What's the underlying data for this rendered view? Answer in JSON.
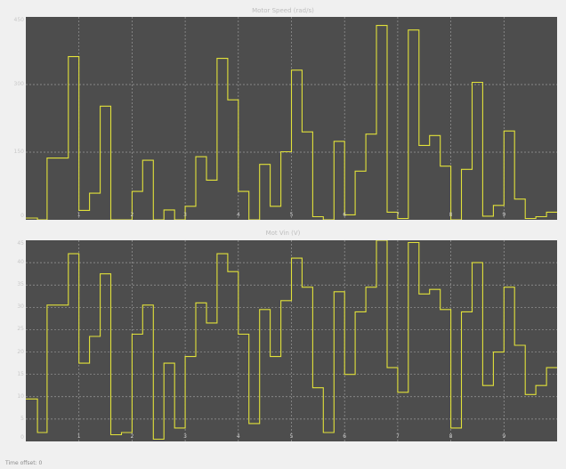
{
  "plots": {
    "top": {
      "title": "Motor Speed (rad/s)"
    },
    "bottom": {
      "title": "Mot Vin (V)"
    }
  },
  "status": {
    "text": "Time offset: 0"
  },
  "colors": {
    "background": "#f0f0f0",
    "axes": "#4d4d4d",
    "grid": "#9a9a9a",
    "trace": "#e1e13a"
  },
  "chart_data": [
    {
      "type": "line",
      "title": "Motor Speed (rad/s)",
      "xlim": [
        0,
        10
      ],
      "ylim": [
        0,
        450
      ],
      "xticks": [
        "1",
        "2",
        "3",
        "4",
        "5",
        "6",
        "7",
        "8",
        "9"
      ],
      "yticks": [
        "0",
        "150",
        "300",
        "450"
      ],
      "grid": true,
      "series": [
        {
          "step": "post",
          "x": [
            0,
            0.22,
            0.4,
            0.8,
            1.0,
            1.2,
            1.4,
            1.6,
            1.8,
            2.0,
            2.2,
            2.4,
            2.6,
            2.8,
            3.0,
            3.2,
            3.4,
            3.6,
            3.8,
            4.0,
            4.2,
            4.4,
            4.6,
            4.8,
            5.0,
            5.2,
            5.4,
            5.6,
            5.8,
            6.0,
            6.2,
            6.4,
            6.6,
            6.8,
            7.0,
            7.2,
            7.4,
            7.6,
            7.8,
            8.0,
            8.2,
            8.4,
            8.6,
            8.8,
            9.0,
            9.2,
            9.4,
            9.6,
            9.8,
            10.0
          ],
          "y": [
            4,
            0,
            137,
            362,
            21,
            59,
            252,
            0,
            0,
            63,
            132,
            0,
            22,
            0,
            30,
            140,
            88,
            358,
            266,
            63,
            0,
            123,
            30,
            151,
            332,
            195,
            7,
            0,
            174,
            11,
            108,
            190,
            431,
            17,
            3,
            421,
            165,
            187,
            119,
            0,
            112,
            305,
            8,
            32,
            197,
            46,
            3,
            7,
            17,
            17
          ]
        }
      ]
    },
    {
      "type": "line",
      "title": "Mot Vin (V)",
      "xlim": [
        0,
        10
      ],
      "ylim": [
        0,
        45
      ],
      "xticks": [
        "1",
        "2",
        "3",
        "4",
        "5",
        "6",
        "7",
        "8",
        "9"
      ],
      "yticks": [
        "0",
        "5",
        "10",
        "15",
        "20",
        "25",
        "30",
        "35",
        "40",
        "45"
      ],
      "grid": true,
      "series": [
        {
          "step": "post",
          "x": [
            0,
            0.22,
            0.4,
            0.8,
            1.0,
            1.2,
            1.4,
            1.6,
            1.8,
            2.0,
            2.2,
            2.4,
            2.6,
            2.8,
            3.0,
            3.2,
            3.4,
            3.6,
            3.8,
            4.0,
            4.2,
            4.4,
            4.6,
            4.8,
            5.0,
            5.2,
            5.4,
            5.6,
            5.8,
            6.0,
            6.2,
            6.4,
            6.6,
            6.8,
            7.0,
            7.2,
            7.4,
            7.6,
            7.8,
            8.0,
            8.2,
            8.4,
            8.6,
            8.8,
            9.0,
            9.2,
            9.4,
            9.6,
            9.8,
            10.0
          ],
          "y": [
            9.5,
            2,
            30.5,
            42,
            17.5,
            23.5,
            37.5,
            1.5,
            2,
            24,
            30.5,
            0.5,
            17.5,
            3,
            19,
            31,
            26.5,
            42,
            38,
            24,
            4,
            29.5,
            19,
            31.5,
            41,
            34.5,
            12,
            2,
            33.5,
            15,
            29,
            34.5,
            45,
            16.5,
            11,
            44.5,
            33,
            34,
            29.5,
            3,
            29,
            40,
            12.5,
            20,
            34.5,
            21.5,
            10.5,
            12.5,
            16.5,
            16.5
          ]
        }
      ]
    }
  ]
}
